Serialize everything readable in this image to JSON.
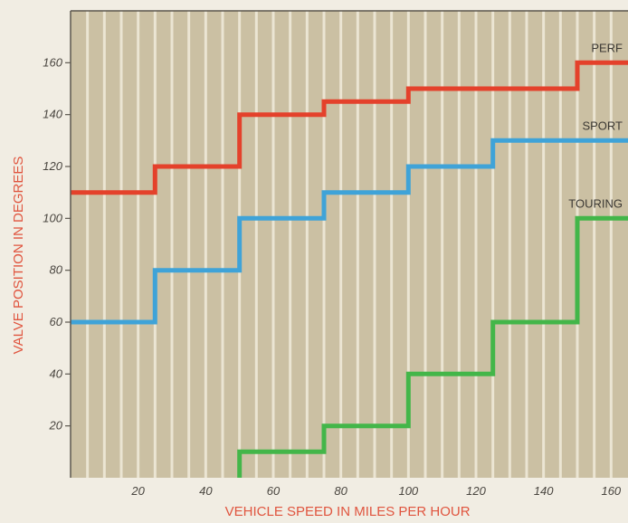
{
  "chart_data": {
    "type": "line",
    "step": true,
    "title": "",
    "xlabel": "VEHICLE SPEED IN MILES PER HOUR",
    "ylabel": "VALVE POSITION IN DEGREES",
    "xlim": [
      0,
      165
    ],
    "ylim": [
      0,
      180
    ],
    "x_ticks": [
      20,
      40,
      60,
      80,
      100,
      120,
      140,
      160
    ],
    "y_ticks": [
      20,
      40,
      60,
      80,
      100,
      120,
      140,
      160
    ],
    "grid": "vertical",
    "background_color": "#cbc0a3",
    "grid_color": "#ebe5d3",
    "series": [
      {
        "name": "PERF",
        "color": "#e4412b",
        "x": [
          0,
          25,
          25,
          50,
          50,
          75,
          75,
          100,
          100,
          150,
          150,
          165
        ],
        "y": [
          110,
          110,
          120,
          120,
          140,
          140,
          145,
          145,
          150,
          150,
          160,
          160
        ]
      },
      {
        "name": "SPORT",
        "color": "#3fa3d8",
        "x": [
          0,
          25,
          25,
          50,
          50,
          75,
          75,
          100,
          100,
          125,
          125,
          165
        ],
        "y": [
          60,
          60,
          80,
          80,
          100,
          100,
          110,
          110,
          120,
          120,
          130,
          130
        ]
      },
      {
        "name": "TOURING",
        "color": "#43b649",
        "x": [
          50,
          50,
          75,
          75,
          100,
          100,
          125,
          125,
          150,
          150,
          165
        ],
        "y": [
          0,
          10,
          10,
          20,
          20,
          40,
          40,
          60,
          60,
          100,
          100
        ]
      }
    ]
  }
}
